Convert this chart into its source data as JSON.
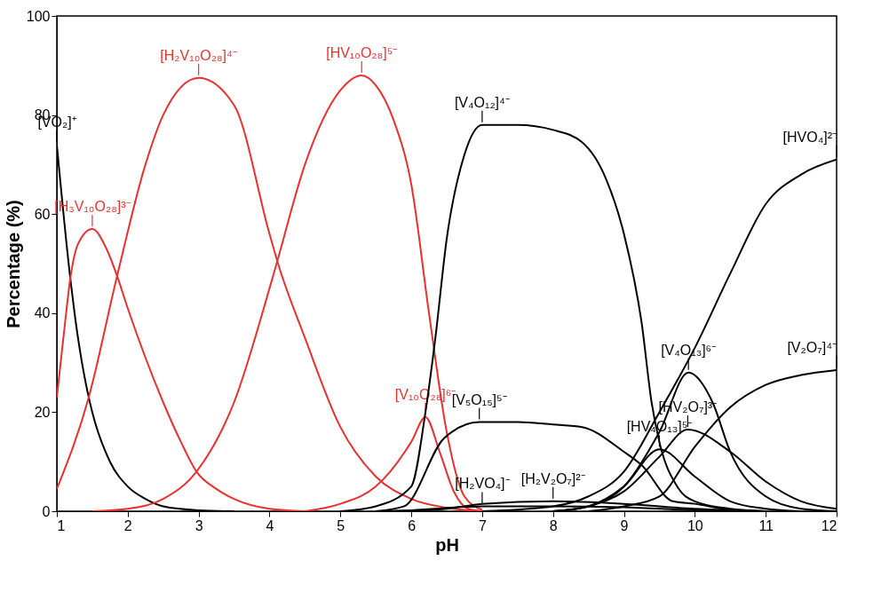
{
  "chart_data": {
    "type": "line",
    "xlabel": "pH",
    "ylabel": "Percentage (%)",
    "xlim": [
      1,
      12
    ],
    "ylim": [
      0,
      100
    ],
    "xticks": [
      1,
      2,
      3,
      4,
      5,
      6,
      7,
      8,
      9,
      10,
      11,
      12
    ],
    "yticks": [
      0,
      20,
      40,
      60,
      80,
      100
    ],
    "grid": false,
    "marker": "none",
    "line_style": "solid",
    "series": [
      {
        "name": "[VO₂]⁺",
        "color": "#000000",
        "x": [
          1,
          1.19,
          1.25,
          1.45,
          1.5,
          1.75,
          2,
          2.25,
          2.5,
          3,
          3.5
        ],
        "values": [
          74,
          47,
          40,
          23,
          20,
          10,
          5,
          2.5,
          1,
          0.2,
          0
        ]
      },
      {
        "name": "[H₃V₁₀O₂₈]³⁻",
        "color": "#e8312f",
        "x": [
          1,
          1.1,
          1.19,
          1.3,
          1.5,
          1.7,
          1.85,
          2,
          2.25,
          2.5,
          2.75,
          2.97,
          3.25,
          3.5,
          4,
          4.5
        ],
        "values": [
          23,
          36,
          47,
          54,
          57,
          53,
          47.5,
          41,
          31,
          22,
          14,
          8,
          4.5,
          2.5,
          0.5,
          0
        ]
      },
      {
        "name": "[H₂V₁₀O₂₈]⁴⁻",
        "color": "#e8312f",
        "x": [
          1,
          1.45,
          1.85,
          2.25,
          2.5,
          3,
          3.5,
          4,
          4.11,
          4.5,
          5,
          5.5,
          6,
          6.5,
          7
        ],
        "values": [
          4.5,
          23,
          47.5,
          70,
          80,
          87.5,
          82,
          56,
          50.5,
          35,
          17,
          7,
          2.5,
          0.7,
          0
        ]
      },
      {
        "name": "[HV₁₀O₂₈]⁵⁻",
        "color": "#e8312f",
        "x": [
          1.5,
          2,
          2.5,
          2.97,
          3.5,
          4,
          4.11,
          4.5,
          5,
          5.3,
          5.5,
          5.75,
          6,
          6.25,
          6.5,
          6.75,
          7
        ],
        "values": [
          0,
          0.5,
          2.5,
          8,
          22,
          45,
          50.5,
          70,
          85,
          88,
          86,
          79,
          66,
          40,
          16,
          3,
          0.3
        ]
      },
      {
        "name": "[V₁₀O₂₈]⁶⁻",
        "color": "#e8312f",
        "x": [
          4.5,
          5,
          5.5,
          6,
          6.2,
          6.4,
          6.6,
          6.8,
          7
        ],
        "values": [
          0,
          1.5,
          5,
          14,
          19,
          12,
          4,
          0.5,
          0
        ]
      },
      {
        "name": "[V₄O₁₂]⁴⁻",
        "color": "#000000",
        "x": [
          5,
          5.5,
          6,
          6.2,
          6.34,
          6.5,
          6.75,
          7,
          7.5,
          8,
          8.41,
          8.75,
          9,
          9.25,
          9.39,
          9.5,
          9.75,
          10,
          10.5,
          11
        ],
        "values": [
          0,
          1,
          5,
          20,
          35,
          55,
          72,
          78,
          78,
          77,
          74.5,
          67,
          56,
          38,
          22,
          14,
          5,
          2,
          0.5,
          0
        ]
      },
      {
        "name": "[HVO₄]²⁻",
        "color": "#000000",
        "x": [
          7,
          8,
          8.5,
          9,
          9.5,
          10,
          10.5,
          11,
          11.5,
          12
        ],
        "values": [
          0,
          1,
          3,
          8,
          20,
          33,
          48,
          62,
          68,
          71
        ]
      },
      {
        "name": "[V₄O₁₃]⁶⁻",
        "color": "#000000",
        "x": [
          8,
          8.5,
          9,
          9.5,
          9.91,
          10.25,
          10.5,
          11,
          11.5,
          12
        ],
        "values": [
          0,
          1,
          5,
          16,
          28,
          22,
          12,
          3,
          0.5,
          0
        ]
      },
      {
        "name": "[HV₂O₇]³⁻",
        "color": "#000000",
        "x": [
          8,
          8.5,
          9,
          9.5,
          9.9,
          10.5,
          11,
          11.5,
          12
        ],
        "values": [
          0,
          1,
          4,
          11,
          16.5,
          12,
          6,
          2,
          0.5
        ]
      },
      {
        "name": "[HV₄O₁₃]⁵⁻",
        "color": "#000000",
        "x": [
          8,
          8.5,
          9,
          9.5,
          10,
          10.5,
          11,
          11.5
        ],
        "values": [
          0,
          1,
          5,
          12.5,
          7,
          2,
          0.5,
          0
        ]
      },
      {
        "name": "[V₂O₇]⁴⁻",
        "color": "#000000",
        "x": [
          8.5,
          9,
          9.5,
          10,
          10.5,
          11,
          11.5,
          12
        ],
        "values": [
          0,
          1,
          3,
          13,
          21,
          25.5,
          27.5,
          28.5
        ]
      },
      {
        "name": "[V₅O₁₅]⁵⁻",
        "color": "#000000",
        "x": [
          5.5,
          5.9,
          6.46,
          6.96,
          7.5,
          8,
          8.41,
          9,
          9.25,
          9.69,
          10,
          10.5,
          11
        ],
        "values": [
          0,
          1,
          14.7,
          18,
          18,
          17.5,
          17,
          12,
          9.3,
          2,
          1.5,
          0.3,
          0
        ]
      },
      {
        "name": "[H₂V₂O₇]²⁻",
        "color": "#000000",
        "x": [
          6,
          6.5,
          7,
          8,
          9,
          10,
          11
        ],
        "values": [
          0,
          0.5,
          1.5,
          2,
          1.5,
          0.5,
          0
        ]
      },
      {
        "name": "[H₂VO₄]⁻",
        "color": "#000000",
        "x": [
          5.5,
          6,
          7,
          8,
          9,
          10,
          10.5
        ],
        "values": [
          0,
          0.2,
          1,
          1,
          0.8,
          0.2,
          0
        ]
      }
    ]
  }
}
